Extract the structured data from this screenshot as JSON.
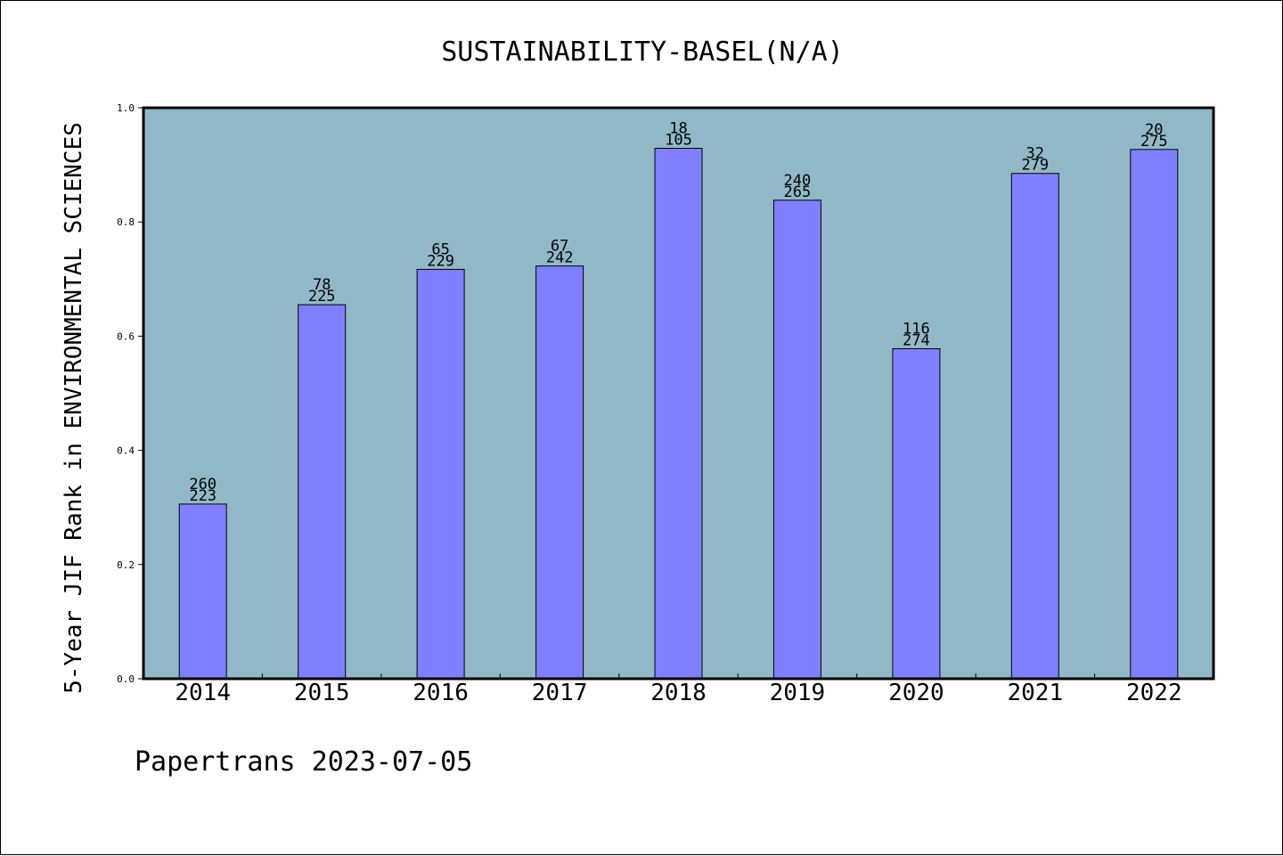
{
  "chart_data": {
    "type": "bar",
    "title": "SUSTAINABILITY-BASEL(N/A)",
    "xlabel": "",
    "ylabel": "5-Year JIF Rank in ENVIRONMENTAL SCIENCES",
    "categories": [
      "2014",
      "2015",
      "2016",
      "2017",
      "2018",
      "2019",
      "2020",
      "2021",
      "2022"
    ],
    "values": [
      0.306,
      0.655,
      0.717,
      0.723,
      0.929,
      0.838,
      0.578,
      0.885,
      0.927
    ],
    "labels_top": [
      "260",
      "78",
      "65",
      "67",
      "18",
      "240",
      "116",
      "32",
      "20"
    ],
    "labels_bottom": [
      "223",
      "225",
      "229",
      "242",
      "105",
      "265",
      "274",
      "279",
      "275"
    ],
    "ylim": [
      0.0,
      1.0
    ],
    "yticks": [
      "0.0",
      "0.2",
      "0.4",
      "0.6",
      "0.8",
      "1.0"
    ],
    "grid": false,
    "legend": "none",
    "colors": {
      "bar_fill": "#8080ff",
      "plot_bg": "#91b8c7",
      "axis": "#000000"
    }
  },
  "footer": {
    "text": "Papertrans 2023-07-05"
  }
}
